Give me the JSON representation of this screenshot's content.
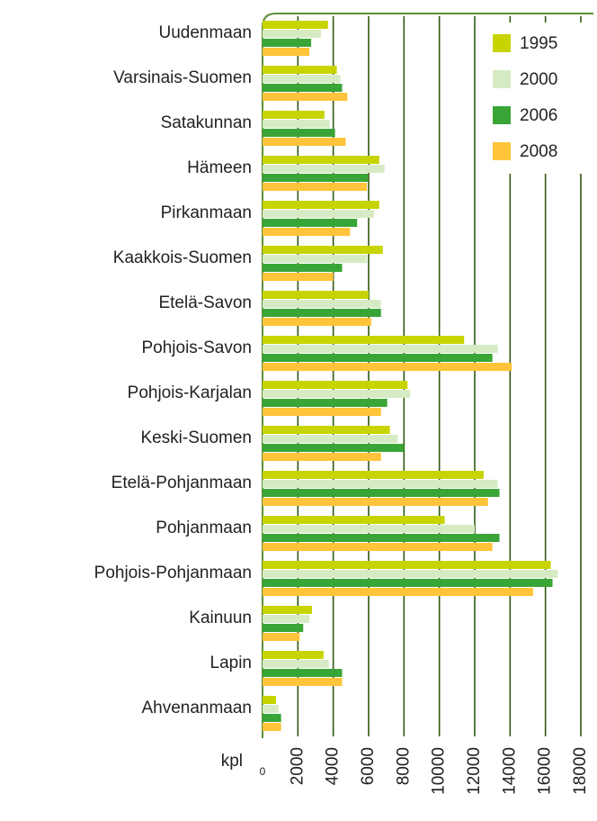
{
  "chart_data": {
    "type": "hbar",
    "xlabel": "kpl",
    "categories": [
      "Uudenmaan",
      "Varsinais-Suomen",
      "Satakunnan",
      "Hämeen",
      "Pirkanmaan",
      "Kaakkois-Suomen",
      "Etelä-Savon",
      "Pohjois-Savon",
      "Pohjois-Karjalan",
      "Keski-Suomen",
      "Etelä-Pohjanmaan",
      "Pohjanmaan",
      "Pohjois-Pohjanmaan",
      "Kainuun",
      "Lapin",
      "Ahvenanmaan"
    ],
    "series": [
      {
        "name": "1995",
        "color": "#c8d400",
        "values": [
          3700,
          4200,
          3500,
          6600,
          6600,
          6800,
          6000,
          11400,
          8200,
          7200,
          12500,
          10300,
          16300,
          2800,
          3450,
          760
        ]
      },
      {
        "name": "2000",
        "color": "#d6ebc4",
        "values": [
          3300,
          4400,
          3800,
          6900,
          6300,
          5900,
          6700,
          13300,
          8350,
          7650,
          13300,
          12000,
          16700,
          2650,
          3750,
          900
        ]
      },
      {
        "name": "2006",
        "color": "#3aa537",
        "values": [
          2750,
          4500,
          4100,
          5950,
          5350,
          4500,
          6700,
          13000,
          7050,
          8000,
          13400,
          13400,
          16400,
          2300,
          4500,
          1050
        ]
      },
      {
        "name": "2008",
        "color": "#ffc43a",
        "values": [
          2650,
          4800,
          4700,
          5900,
          4950,
          4000,
          6150,
          14100,
          6700,
          6700,
          12750,
          13000,
          15300,
          2100,
          4500,
          1050
        ]
      }
    ],
    "xlim": [
      0,
      18000
    ],
    "xticks": [
      0,
      2000,
      4000,
      6000,
      8000,
      10000,
      12000,
      14000,
      16000,
      18000
    ],
    "grid": true,
    "legend": "top-right"
  }
}
